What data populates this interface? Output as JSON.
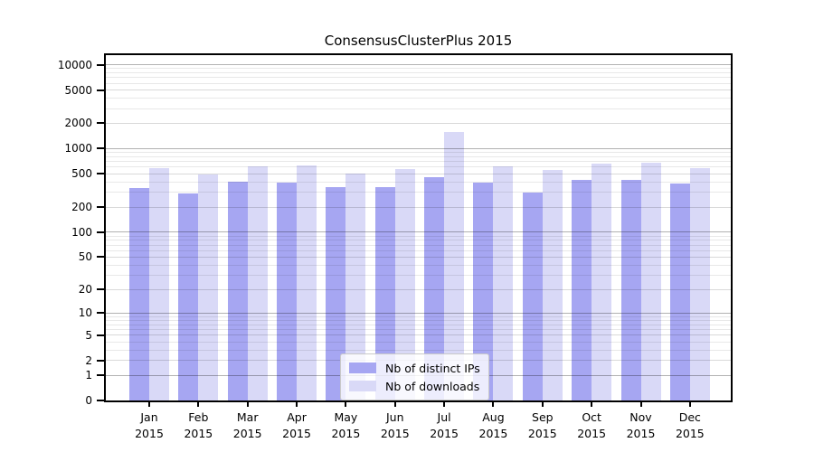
{
  "title": "ConsensusClusterPlus 2015",
  "legend": {
    "series1_label": "Nb of distinct IPs",
    "series2_label": "Nb of downloads"
  },
  "colors": {
    "distinct_ips_bar": "#a6a6f2",
    "downloads_bar": "#d9d9f7",
    "axis_spine": "#000000",
    "decade_gridline": "#b5b5b5",
    "minor_gridline": "#e9e9e9"
  },
  "chart_data": {
    "type": "bar",
    "title": "ConsensusClusterPlus 2015",
    "categories": [
      {
        "month": "Jan",
        "year": "2015"
      },
      {
        "month": "Feb",
        "year": "2015"
      },
      {
        "month": "Mar",
        "year": "2015"
      },
      {
        "month": "Apr",
        "year": "2015"
      },
      {
        "month": "May",
        "year": "2015"
      },
      {
        "month": "Jun",
        "year": "2015"
      },
      {
        "month": "Jul",
        "year": "2015"
      },
      {
        "month": "Aug",
        "year": "2015"
      },
      {
        "month": "Sep",
        "year": "2015"
      },
      {
        "month": "Oct",
        "year": "2015"
      },
      {
        "month": "Nov",
        "year": "2015"
      },
      {
        "month": "Dec",
        "year": "2015"
      }
    ],
    "series": [
      {
        "name": "Nb of distinct IPs",
        "slug": "distinct-ips",
        "color": "#a6a6f2",
        "values": [
          340,
          290,
          400,
          390,
          350,
          345,
          460,
          390,
          300,
          420,
          420,
          380
        ]
      },
      {
        "name": "Nb of downloads",
        "slug": "downloads",
        "color": "#d9d9f7",
        "values": [
          590,
          495,
          615,
          630,
          510,
          565,
          1565,
          620,
          560,
          670,
          675,
          580
        ]
      }
    ],
    "xlabel": "",
    "ylabel": "",
    "yscale": "log1p",
    "ylim": [
      0,
      13000
    ],
    "yticks": [
      0,
      1,
      2,
      5,
      10,
      20,
      50,
      100,
      200,
      500,
      1000,
      2000,
      5000,
      10000
    ],
    "grid": "horizontal, decade lines darker, minor mantissa lines faint, drawn over bars",
    "legend_position": "inside lower center"
  }
}
